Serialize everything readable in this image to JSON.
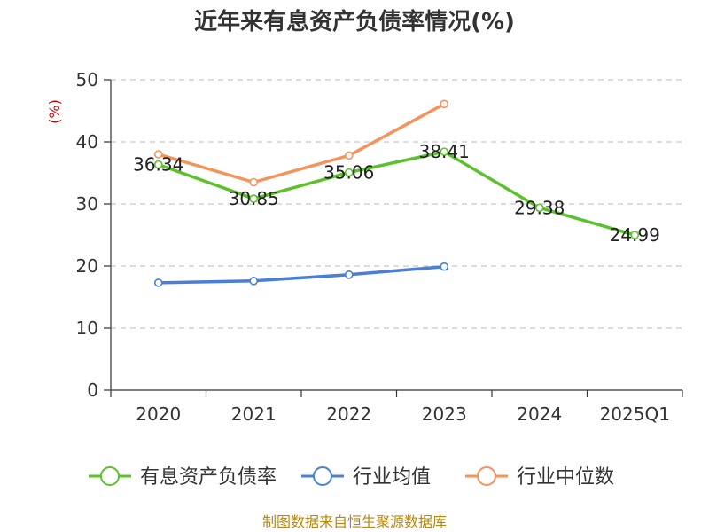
{
  "title": "近年来有息资产负债率情况(%)",
  "source": "制图数据来自恒生聚源数据库",
  "chart_data": {
    "type": "line",
    "title": "近年来有息资产负债率情况(%)",
    "ylabel": "(%)",
    "xlabel": "",
    "categories": [
      "2020",
      "2021",
      "2022",
      "2023",
      "2024",
      "2025Q1"
    ],
    "ylim": [
      0,
      50
    ],
    "yticks": [
      0,
      10,
      20,
      30,
      40,
      50
    ],
    "grid": true,
    "legend_position": "bottom",
    "series": [
      {
        "name": "有息资产负债率",
        "color": "#5cc22b",
        "values": [
          36.34,
          30.85,
          35.06,
          38.41,
          29.38,
          24.99
        ],
        "labels": [
          "36.34",
          "30.85",
          "35.06",
          "38.41",
          "29.38",
          "24.99"
        ]
      },
      {
        "name": "行业均值",
        "color": "#4a7fd6",
        "values": [
          17.3,
          17.6,
          18.6,
          19.9,
          null,
          null
        ]
      },
      {
        "name": "行业中位数",
        "color": "#f5935c",
        "values": [
          38.0,
          33.5,
          37.8,
          46.1,
          null,
          null
        ]
      }
    ]
  }
}
